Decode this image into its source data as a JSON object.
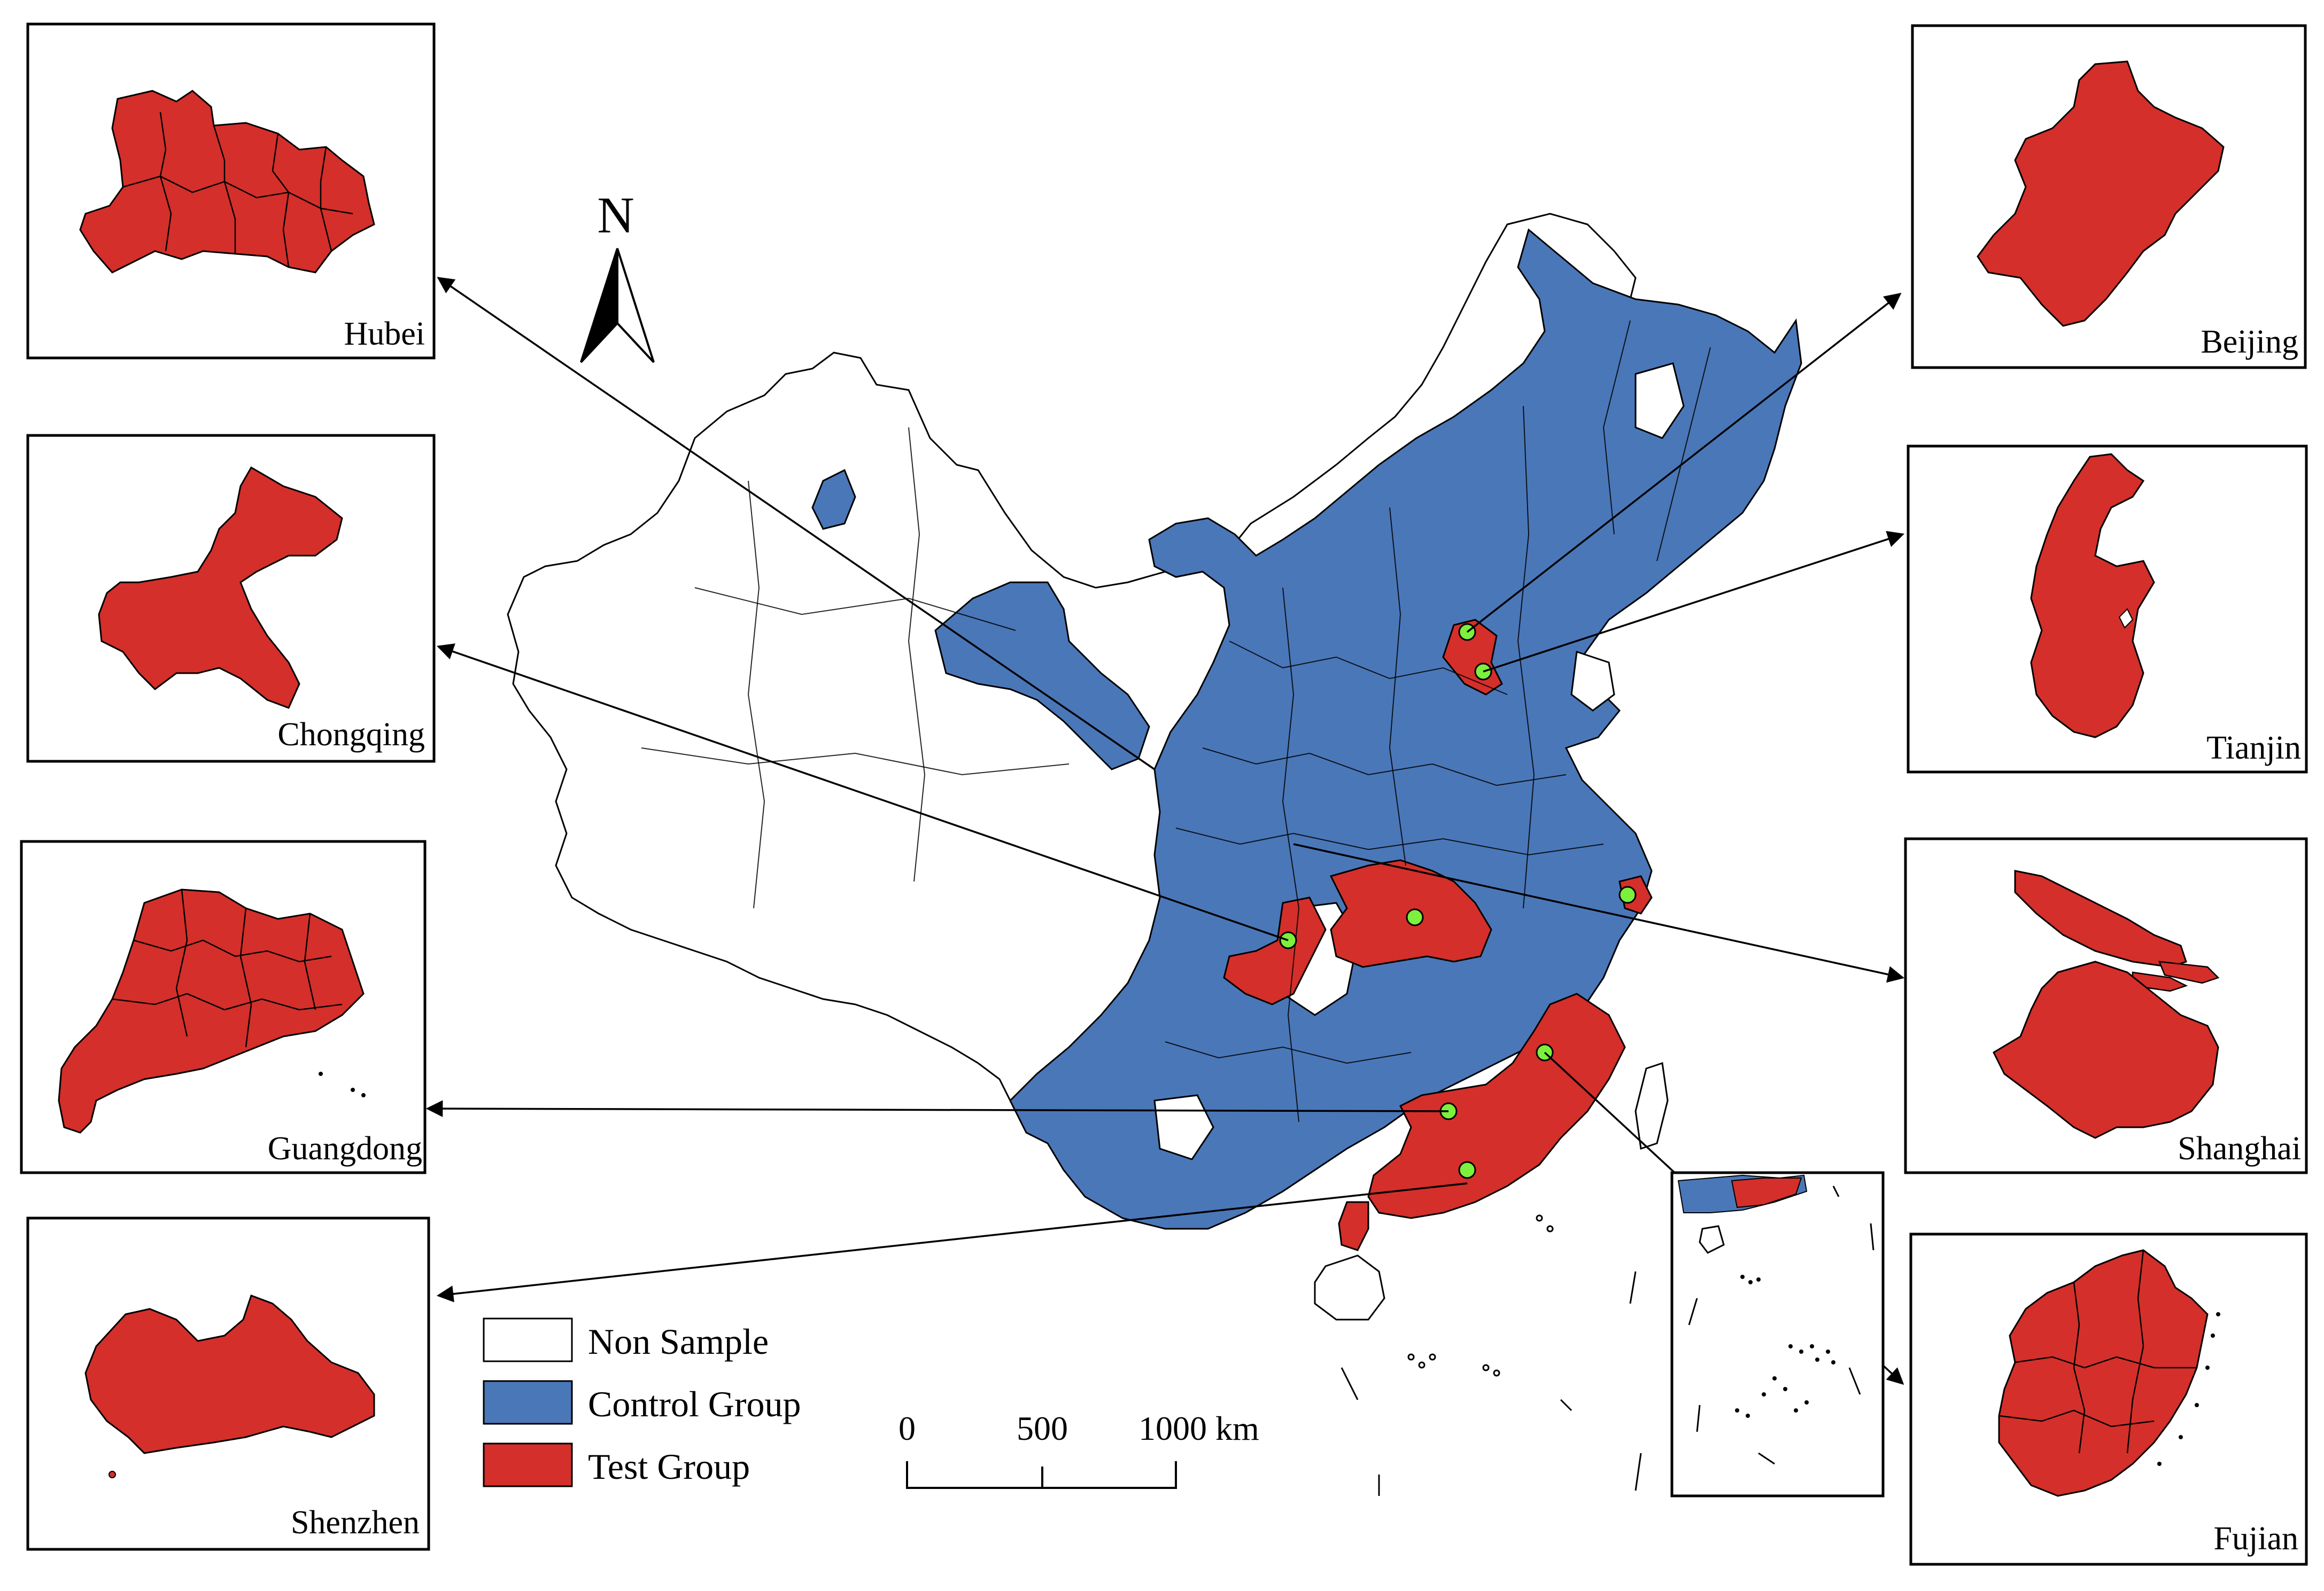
{
  "insets": {
    "hubei": "Hubei",
    "chongqing": "Chongqing",
    "guangdong": "Guangdong",
    "shenzhen": "Shenzhen",
    "beijing": "Beijing",
    "tianjin": "Tianjin",
    "shanghai": "Shanghai",
    "fujian": "Fujian"
  },
  "north_arrow": {
    "label": "N"
  },
  "legend": {
    "non_sample": "Non Sample",
    "control_group": "Control Group",
    "test_group": "Test Group"
  },
  "scale_bar": {
    "tick_0": "0",
    "tick_500": "500",
    "tick_1000": "1000 km"
  },
  "colors": {
    "non_sample": "#ffffff",
    "control_group": "#4a77b8",
    "test_group": "#d42f2a",
    "marker": "#7cf03c"
  }
}
